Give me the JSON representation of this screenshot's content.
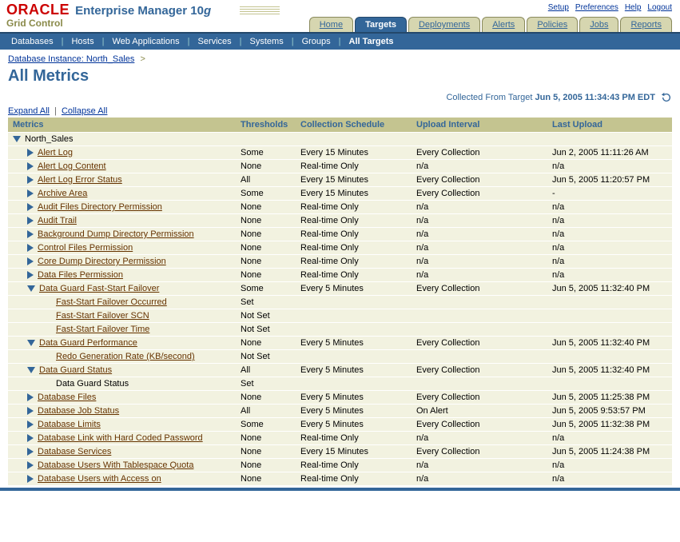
{
  "brand": {
    "oracle": "ORACLE",
    "em": "Enterprise Manager 10",
    "em_suffix": "g",
    "sub": "Grid Control"
  },
  "toplinks": [
    "Setup",
    "Preferences",
    "Help",
    "Logout"
  ],
  "tabs": [
    {
      "label": "Home",
      "active": false
    },
    {
      "label": "Targets",
      "active": true
    },
    {
      "label": "Deployments",
      "active": false
    },
    {
      "label": "Alerts",
      "active": false
    },
    {
      "label": "Policies",
      "active": false
    },
    {
      "label": "Jobs",
      "active": false
    },
    {
      "label": "Reports",
      "active": false
    }
  ],
  "subnav": {
    "items": [
      "Databases",
      "Hosts",
      "Web Applications",
      "Services",
      "Systems",
      "Groups",
      "All Targets"
    ],
    "selected": "All Targets"
  },
  "breadcrumb": {
    "link": "Database Instance: North_Sales"
  },
  "page_title": "All Metrics",
  "collected": {
    "prefix": "Collected From Target",
    "timestamp": "Jun 5, 2005 11:34:43 PM EDT"
  },
  "expand": {
    "expand": "Expand All",
    "collapse": "Collapse All"
  },
  "columns": [
    "Metrics",
    "Thresholds",
    "Collection Schedule",
    "Upload Interval",
    "Last Upload"
  ],
  "root_label": "North_Sales",
  "rows": [
    {
      "level": 1,
      "state": "right",
      "link": true,
      "label": "Alert Log",
      "thresholds": "Some",
      "schedule": "Every 15 Minutes",
      "interval": "Every Collection",
      "last": "Jun 2, 2005 11:11:26 AM"
    },
    {
      "level": 1,
      "state": "right",
      "link": true,
      "label": "Alert Log Content",
      "thresholds": "None",
      "schedule": "Real-time Only",
      "interval": "n/a",
      "last": "n/a"
    },
    {
      "level": 1,
      "state": "right",
      "link": true,
      "label": "Alert Log Error Status",
      "thresholds": "All",
      "schedule": "Every 15 Minutes",
      "interval": "Every Collection",
      "last": "Jun 5, 2005 11:20:57 PM"
    },
    {
      "level": 1,
      "state": "right",
      "link": true,
      "label": "Archive Area",
      "thresholds": "Some",
      "schedule": "Every 15 Minutes",
      "interval": "Every Collection",
      "last": "-"
    },
    {
      "level": 1,
      "state": "right",
      "link": true,
      "label": "Audit Files Directory Permission",
      "thresholds": "None",
      "schedule": "Real-time Only",
      "interval": "n/a",
      "last": "n/a"
    },
    {
      "level": 1,
      "state": "right",
      "link": true,
      "label": "Audit Trail",
      "thresholds": "None",
      "schedule": "Real-time Only",
      "interval": "n/a",
      "last": "n/a"
    },
    {
      "level": 1,
      "state": "right",
      "link": true,
      "label": "Background Dump Directory Permission",
      "thresholds": "None",
      "schedule": "Real-time Only",
      "interval": "n/a",
      "last": "n/a"
    },
    {
      "level": 1,
      "state": "right",
      "link": true,
      "label": "Control Files Permission",
      "thresholds": "None",
      "schedule": "Real-time Only",
      "interval": "n/a",
      "last": "n/a"
    },
    {
      "level": 1,
      "state": "right",
      "link": true,
      "label": "Core Dump Directory Permission",
      "thresholds": "None",
      "schedule": "Real-time Only",
      "interval": "n/a",
      "last": "n/a"
    },
    {
      "level": 1,
      "state": "right",
      "link": true,
      "label": "Data Files Permission",
      "thresholds": "None",
      "schedule": "Real-time Only",
      "interval": "n/a",
      "last": "n/a"
    },
    {
      "level": 1,
      "state": "down",
      "link": true,
      "label": "Data Guard Fast-Start Failover",
      "thresholds": "Some",
      "schedule": "Every 5 Minutes",
      "interval": "Every Collection",
      "last": "Jun 5, 2005 11:32:40 PM"
    },
    {
      "level": 2,
      "state": "",
      "link": true,
      "label": "Fast-Start Failover Occurred",
      "thresholds": "Set",
      "schedule": "",
      "interval": "",
      "last": ""
    },
    {
      "level": 2,
      "state": "",
      "link": true,
      "label": "Fast-Start Failover SCN",
      "thresholds": "Not Set",
      "schedule": "",
      "interval": "",
      "last": ""
    },
    {
      "level": 2,
      "state": "",
      "link": true,
      "label": "Fast-Start Failover Time",
      "thresholds": "Not Set",
      "schedule": "",
      "interval": "",
      "last": ""
    },
    {
      "level": 1,
      "state": "down",
      "link": true,
      "label": "Data Guard Performance",
      "thresholds": "None",
      "schedule": "Every 5 Minutes",
      "interval": "Every Collection",
      "last": "Jun 5, 2005 11:32:40 PM"
    },
    {
      "level": 2,
      "state": "",
      "link": true,
      "label": "Redo Generation Rate (KB/second)",
      "thresholds": "Not Set",
      "schedule": "",
      "interval": "",
      "last": ""
    },
    {
      "level": 1,
      "state": "down",
      "link": true,
      "label": "Data Guard Status",
      "thresholds": "All",
      "schedule": "Every 5 Minutes",
      "interval": "Every Collection",
      "last": "Jun 5, 2005 11:32:40 PM"
    },
    {
      "level": 2,
      "state": "",
      "link": false,
      "label": "Data Guard Status",
      "thresholds": "Set",
      "schedule": "",
      "interval": "",
      "last": ""
    },
    {
      "level": 1,
      "state": "right",
      "link": true,
      "label": "Database Files",
      "thresholds": "None",
      "schedule": "Every 5 Minutes",
      "interval": "Every Collection",
      "last": "Jun 5, 2005 11:25:38 PM"
    },
    {
      "level": 1,
      "state": "right",
      "link": true,
      "label": "Database Job Status",
      "thresholds": "All",
      "schedule": "Every 5 Minutes",
      "interval": "On Alert",
      "last": "Jun 5, 2005 9:53:57 PM"
    },
    {
      "level": 1,
      "state": "right",
      "link": true,
      "label": "Database Limits",
      "thresholds": "Some",
      "schedule": "Every 5 Minutes",
      "interval": "Every Collection",
      "last": "Jun 5, 2005 11:32:38 PM"
    },
    {
      "level": 1,
      "state": "right",
      "link": true,
      "label": "Database Link with Hard Coded Password",
      "thresholds": "None",
      "schedule": "Real-time Only",
      "interval": "n/a",
      "last": "n/a"
    },
    {
      "level": 1,
      "state": "right",
      "link": true,
      "label": "Database Services",
      "thresholds": "None",
      "schedule": "Every 15 Minutes",
      "interval": "Every Collection",
      "last": "Jun 5, 2005 11:24:38 PM"
    },
    {
      "level": 1,
      "state": "right",
      "link": true,
      "label": "Database Users With Tablespace Quota",
      "thresholds": "None",
      "schedule": "Real-time Only",
      "interval": "n/a",
      "last": "n/a"
    },
    {
      "level": 1,
      "state": "right",
      "link": true,
      "label": "Database Users with Access on",
      "thresholds": "None",
      "schedule": "Real-time Only",
      "interval": "n/a",
      "last": "n/a"
    }
  ]
}
